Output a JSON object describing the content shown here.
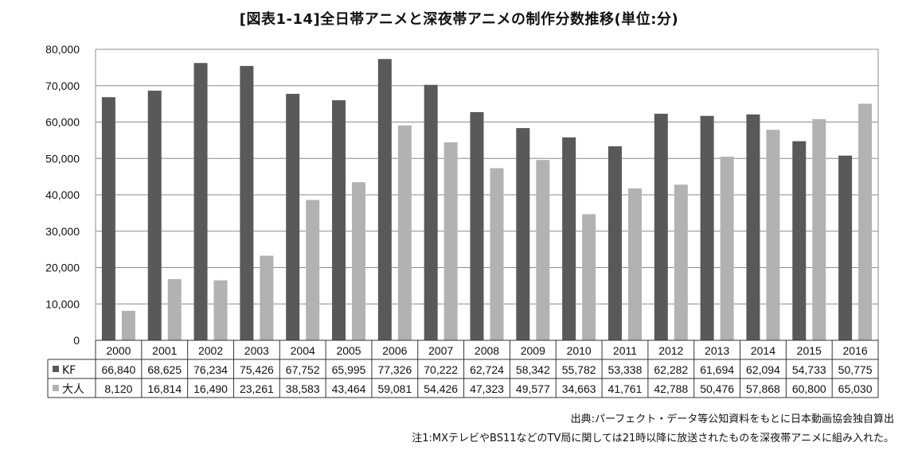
{
  "chart_data": {
    "type": "bar",
    "title": "[図表1-14]全日帯アニメと深夜帯アニメの制作分数推移(単位:分)",
    "categories": [
      "2000",
      "2001",
      "2002",
      "2003",
      "2004",
      "2005",
      "2006",
      "2007",
      "2008",
      "2009",
      "2010",
      "2011",
      "2012",
      "2013",
      "2014",
      "2015",
      "2016"
    ],
    "series": [
      {
        "name": "KF",
        "color": "#595959",
        "values": [
          66840,
          68625,
          76234,
          75426,
          67752,
          65995,
          77326,
          70222,
          62724,
          58342,
          55782,
          53338,
          62282,
          61694,
          62094,
          54733,
          50775
        ],
        "labels": [
          "66,840",
          "68,625",
          "76,234",
          "75,426",
          "67,752",
          "65,995",
          "77,326",
          "70,222",
          "62,724",
          "58,342",
          "55,782",
          "53,338",
          "62,282",
          "61,694",
          "62,094",
          "54,733",
          "50,775"
        ]
      },
      {
        "name": "大人",
        "color": "#b2b2b2",
        "values": [
          8120,
          16814,
          16490,
          23261,
          38583,
          43464,
          59081,
          54426,
          47323,
          49577,
          34663,
          41761,
          42788,
          50476,
          57868,
          60800,
          65030
        ],
        "labels": [
          "8,120",
          "16,814",
          "16,490",
          "23,261",
          "38,583",
          "43,464",
          "59,081",
          "54,426",
          "47,323",
          "49,577",
          "34,663",
          "41,761",
          "42,788",
          "50,476",
          "57,868",
          "60,800",
          "65,030"
        ]
      }
    ],
    "ylim": [
      0,
      80000
    ],
    "yticks": [
      0,
      10000,
      20000,
      30000,
      40000,
      50000,
      60000,
      70000,
      80000
    ],
    "ytick_labels": [
      "0",
      "10,000",
      "20,000",
      "30,000",
      "40,000",
      "50,000",
      "60,000",
      "70,000",
      "80,000"
    ],
    "grid": true,
    "legend": "data-table-left"
  },
  "footer": {
    "source": "出典:パーフェクト・データ等公知資料をもとに日本動画協会独自算出",
    "note": "注1:MXテレビやBS11などのTV局に関しては21時以降に放送されたものを深夜帯アニメに組み入れた。"
  }
}
